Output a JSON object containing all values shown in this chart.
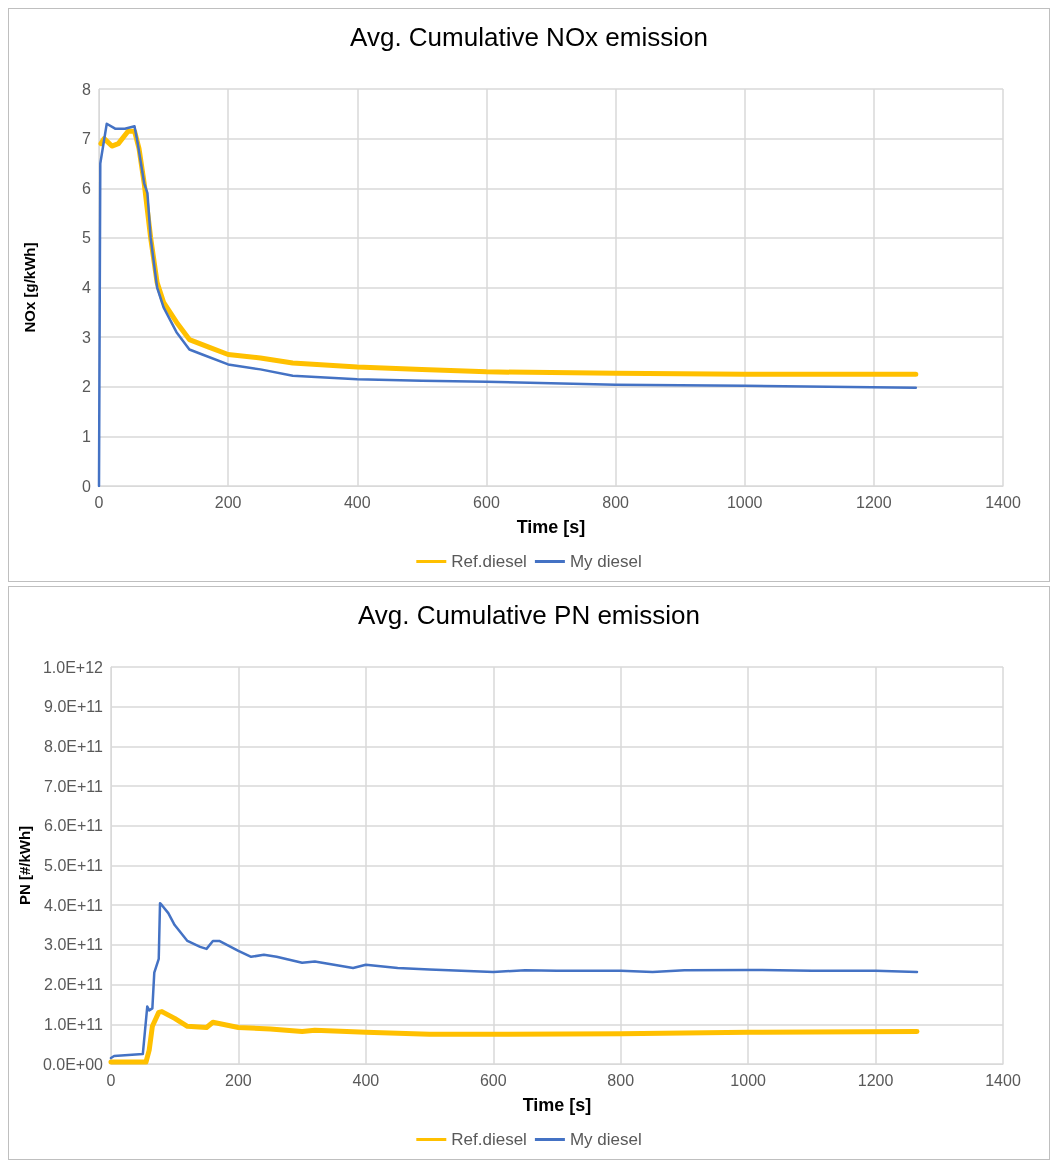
{
  "chart_data": [
    {
      "type": "line",
      "title": "Avg. Cumulative NOx emission",
      "xlabel": "Time [s]",
      "ylabel": "NOx [g/kWh]",
      "xlim": [
        0,
        1400
      ],
      "xticks": [
        0,
        200,
        400,
        600,
        800,
        1000,
        1200,
        1400
      ],
      "ylim": [
        0,
        8
      ],
      "yticks": [
        0,
        1,
        2,
        3,
        4,
        5,
        6,
        7,
        8
      ],
      "grid": true,
      "legend": "bottom",
      "marker": "none",
      "series": [
        {
          "name": "Ref.diesel",
          "color": "#ffc000",
          "x": [
            3,
            8,
            20,
            30,
            45,
            55,
            62,
            70,
            80,
            90,
            100,
            120,
            140,
            170,
            200,
            250,
            300,
            400,
            500,
            600,
            800,
            1000,
            1265
          ],
          "values": [
            6.9,
            7.0,
            6.85,
            6.9,
            7.15,
            7.15,
            6.8,
            6.1,
            5.0,
            4.1,
            3.7,
            3.3,
            2.95,
            2.8,
            2.65,
            2.58,
            2.48,
            2.4,
            2.35,
            2.3,
            2.27,
            2.25,
            2.25
          ]
        },
        {
          "name": "My diesel",
          "color": "#4472c4",
          "x": [
            0,
            2,
            12,
            25,
            40,
            55,
            60,
            70,
            75,
            80,
            90,
            100,
            120,
            140,
            160,
            200,
            250,
            300,
            400,
            500,
            600,
            800,
            1000,
            1265
          ],
          "values": [
            0,
            6.5,
            7.3,
            7.2,
            7.2,
            7.25,
            6.9,
            6.1,
            5.9,
            5.0,
            4.0,
            3.6,
            3.1,
            2.75,
            2.65,
            2.45,
            2.35,
            2.22,
            2.15,
            2.12,
            2.1,
            2.04,
            2.02,
            1.98
          ]
        }
      ]
    },
    {
      "type": "line",
      "title": "Avg. Cumulative PN emission",
      "xlabel": "Time [s]",
      "ylabel": "PN [#/kWh]",
      "xlim": [
        0,
        1400
      ],
      "xticks": [
        0,
        200,
        400,
        600,
        800,
        1000,
        1200,
        1400
      ],
      "ylim": [
        0,
        1000000000000
      ],
      "yticks": [
        {
          "value": 0,
          "label": "0.0E+00"
        },
        {
          "value": 100000000000,
          "label": "1.0E+11"
        },
        {
          "value": 200000000000,
          "label": "2.0E+11"
        },
        {
          "value": 300000000000,
          "label": "3.0E+11"
        },
        {
          "value": 400000000000,
          "label": "4.0E+11"
        },
        {
          "value": 500000000000,
          "label": "5.0E+11"
        },
        {
          "value": 600000000000,
          "label": "6.0E+11"
        },
        {
          "value": 700000000000,
          "label": "7.0E+11"
        },
        {
          "value": 800000000000,
          "label": "8.0E+11"
        },
        {
          "value": 900000000000,
          "label": "9.0E+11"
        },
        {
          "value": 1000000000000,
          "label": "1.0E+12"
        }
      ],
      "grid": true,
      "legend": "bottom",
      "marker": "none",
      "series": [
        {
          "name": "Ref.diesel",
          "color": "#ffc000",
          "x": [
            0,
            55,
            60,
            65,
            75,
            80,
            100,
            120,
            150,
            160,
            200,
            250,
            300,
            320,
            400,
            500,
            600,
            800,
            1000,
            1265
          ],
          "values": [
            5000000000,
            5000000000,
            35000000000,
            95000000000,
            130000000000,
            132000000000,
            115000000000,
            95000000000,
            92000000000,
            105000000000,
            92000000000,
            88000000000,
            82000000000,
            85000000000,
            80000000000,
            75000000000,
            75000000000,
            76000000000,
            80000000000,
            82000000000
          ]
        },
        {
          "name": "My diesel",
          "color": "#4472c4",
          "x": [
            0,
            5,
            50,
            57,
            60,
            65,
            68,
            75,
            77,
            80,
            90,
            100,
            120,
            140,
            150,
            160,
            170,
            200,
            220,
            240,
            260,
            300,
            320,
            380,
            400,
            450,
            500,
            600,
            650,
            700,
            800,
            850,
            900,
            1000,
            1100,
            1200,
            1265
          ],
          "values": [
            15000000000,
            20000000000,
            25000000000,
            145000000000,
            135000000000,
            140000000000,
            230000000000,
            265000000000,
            405000000000,
            400000000000,
            380000000000,
            350000000000,
            310000000000,
            295000000000,
            290000000000,
            310000000000,
            310000000000,
            285000000000,
            270000000000,
            275000000000,
            270000000000,
            255000000000,
            258000000000,
            242000000000,
            250000000000,
            242000000000,
            238000000000,
            232000000000,
            236000000000,
            235000000000,
            235000000000,
            232000000000,
            236000000000,
            237000000000,
            235000000000,
            235000000000,
            232000000000
          ]
        }
      ]
    }
  ]
}
